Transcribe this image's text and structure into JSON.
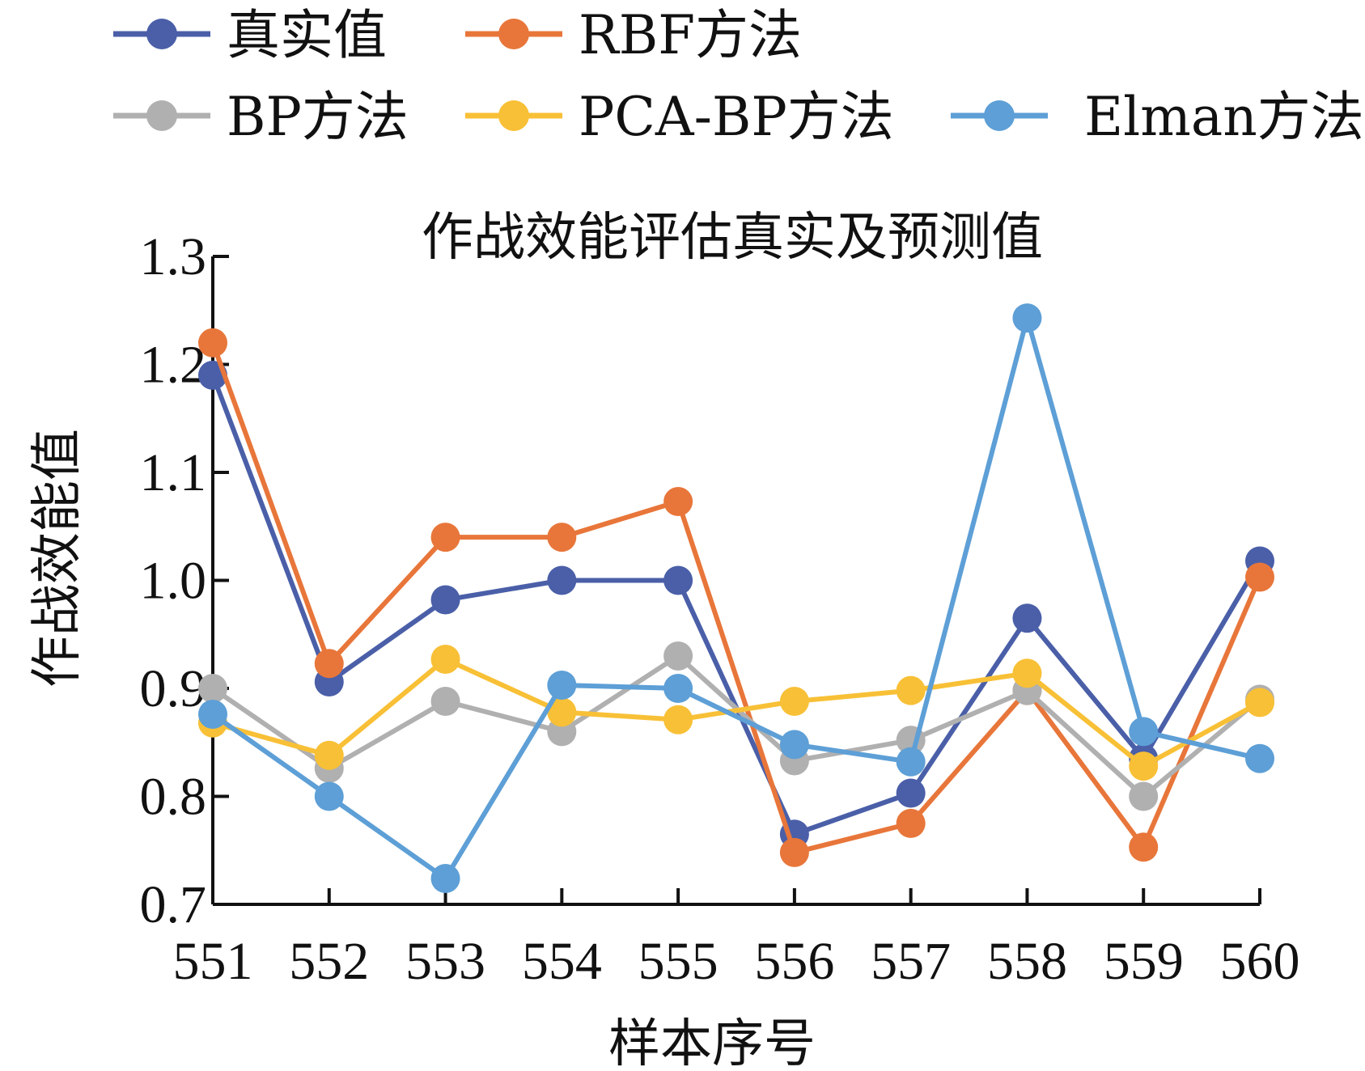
{
  "chart_data": {
    "type": "line",
    "title": "作战效能评估真实及预测值",
    "xlabel": "样本序号",
    "ylabel": "作战效能值",
    "categories": [
      "551",
      "552",
      "553",
      "554",
      "555",
      "556",
      "557",
      "558",
      "559",
      "560"
    ],
    "ylim": [
      0.7,
      1.3
    ],
    "yticks": [
      0.7,
      0.8,
      0.9,
      1.0,
      1.1,
      1.2,
      1.3
    ],
    "ytick_labels": [
      "0.7",
      "0.8",
      "0.9",
      "1.0",
      "1.1",
      "1.2",
      "1.3"
    ],
    "grid": false,
    "legend_position": "top",
    "series": [
      {
        "name": "真实值",
        "color": "#4a5fa8",
        "values": [
          1.19,
          0.906,
          0.982,
          1.0,
          1.0,
          0.765,
          0.803,
          0.965,
          0.835,
          1.018
        ]
      },
      {
        "name": "RBF方法",
        "color": "#e8763a",
        "values": [
          1.22,
          0.923,
          1.04,
          1.04,
          1.073,
          0.748,
          0.775,
          0.898,
          0.753,
          1.003
        ]
      },
      {
        "name": "BP方法",
        "color": "#b0b0b0",
        "values": [
          0.9,
          0.826,
          0.888,
          0.86,
          0.93,
          0.833,
          0.852,
          0.898,
          0.8,
          0.89
        ]
      },
      {
        "name": "PCA-BP方法",
        "color": "#f8c036",
        "values": [
          0.868,
          0.838,
          0.927,
          0.878,
          0.871,
          0.888,
          0.898,
          0.914,
          0.828,
          0.887
        ]
      },
      {
        "name": "Elman方法",
        "color": "#5d9fd6",
        "values": [
          0.876,
          0.8,
          0.724,
          0.903,
          0.9,
          0.848,
          0.832,
          1.243,
          0.86,
          0.835
        ]
      }
    ]
  }
}
